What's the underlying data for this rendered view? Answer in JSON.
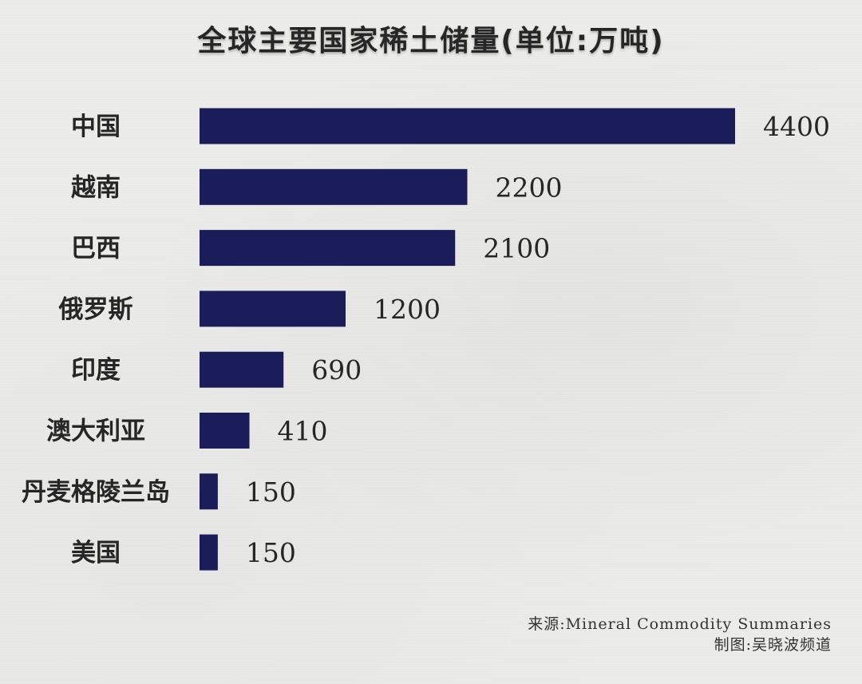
{
  "chart_data": {
    "type": "bar",
    "orientation": "horizontal",
    "title": "全球主要国家稀土储量(单位:万吨)",
    "categories": [
      "中国",
      "越南",
      "巴西",
      "俄罗斯",
      "印度",
      "澳大利亚",
      "丹麦格陵兰岛",
      "美国"
    ],
    "values": [
      4400,
      2200,
      2100,
      1200,
      690,
      410,
      150,
      150
    ],
    "xlim": [
      0,
      4400
    ],
    "grid": false,
    "bar_color": "#1b1c5a"
  },
  "footer": {
    "source": "来源:Mineral Commodity Summaries",
    "credit": "制图:吴晓波频道"
  }
}
